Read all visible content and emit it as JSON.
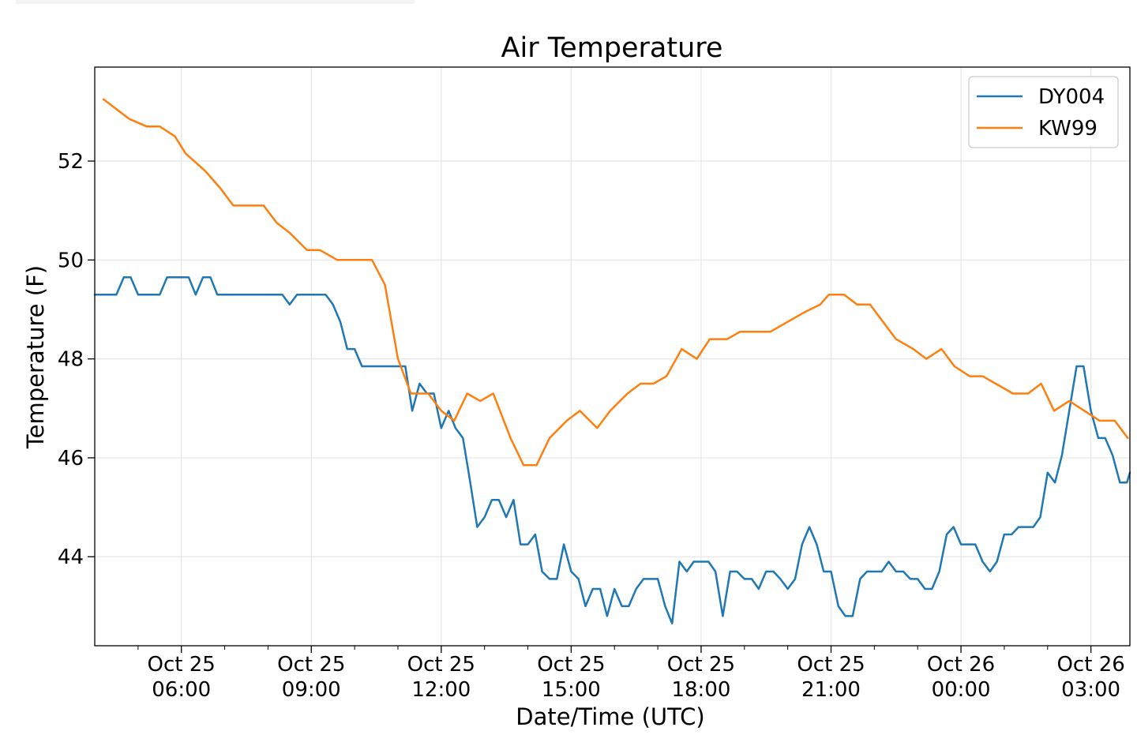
{
  "chart_data": {
    "type": "line",
    "title": "Air Temperature",
    "xlabel": "Date/Time (UTC)",
    "ylabel": "Temperature (F)",
    "x_unit": "hours UTC from 2019-10-25 00:00",
    "xlim": [
      4,
      27.9
    ],
    "ylim": [
      42.2,
      53.9
    ],
    "grid": true,
    "legend_position": "top-right",
    "x_major_ticks": [
      {
        "x": 6,
        "line1": "Oct 25",
        "line2": "06:00"
      },
      {
        "x": 9,
        "line1": "Oct 25",
        "line2": "09:00"
      },
      {
        "x": 12,
        "line1": "Oct 25",
        "line2": "12:00"
      },
      {
        "x": 15,
        "line1": "Oct 25",
        "line2": "15:00"
      },
      {
        "x": 18,
        "line1": "Oct 25",
        "line2": "18:00"
      },
      {
        "x": 21,
        "line1": "Oct 25",
        "line2": "21:00"
      },
      {
        "x": 24,
        "line1": "Oct 26",
        "line2": "00:00"
      },
      {
        "x": 27,
        "line1": "Oct 26",
        "line2": "03:00"
      }
    ],
    "x_minor_ticks": [
      5,
      7,
      8,
      10,
      11,
      13,
      14,
      16,
      17,
      19,
      20,
      22,
      23,
      25,
      26
    ],
    "y_ticks": [
      44,
      46,
      48,
      50,
      52
    ],
    "series": [
      {
        "name": "DY004",
        "color": "#1f77b4",
        "points": [
          [
            4.0,
            49.3
          ],
          [
            4.5,
            49.3
          ],
          [
            4.67,
            49.65
          ],
          [
            4.83,
            49.65
          ],
          [
            5.0,
            49.3
          ],
          [
            5.5,
            49.3
          ],
          [
            5.67,
            49.65
          ],
          [
            6.17,
            49.65
          ],
          [
            6.33,
            49.3
          ],
          [
            6.5,
            49.65
          ],
          [
            6.67,
            49.65
          ],
          [
            6.83,
            49.3
          ],
          [
            8.33,
            49.3
          ],
          [
            8.5,
            49.1
          ],
          [
            8.67,
            49.3
          ],
          [
            9.33,
            49.3
          ],
          [
            9.5,
            49.1
          ],
          [
            9.67,
            48.75
          ],
          [
            9.83,
            48.2
          ],
          [
            10.0,
            48.2
          ],
          [
            10.17,
            47.85
          ],
          [
            11.0,
            47.85
          ],
          [
            11.17,
            47.85
          ],
          [
            11.33,
            46.95
          ],
          [
            11.5,
            47.5
          ],
          [
            11.67,
            47.3
          ],
          [
            11.83,
            47.3
          ],
          [
            12.0,
            46.6
          ],
          [
            12.17,
            46.95
          ],
          [
            12.33,
            46.6
          ],
          [
            12.5,
            46.4
          ],
          [
            12.67,
            45.5
          ],
          [
            12.83,
            44.6
          ],
          [
            13.0,
            44.8
          ],
          [
            13.17,
            45.15
          ],
          [
            13.33,
            45.15
          ],
          [
            13.5,
            44.8
          ],
          [
            13.67,
            45.15
          ],
          [
            13.83,
            44.25
          ],
          [
            14.0,
            44.25
          ],
          [
            14.17,
            44.45
          ],
          [
            14.33,
            43.7
          ],
          [
            14.5,
            43.55
          ],
          [
            14.67,
            43.55
          ],
          [
            14.83,
            44.25
          ],
          [
            15.0,
            43.7
          ],
          [
            15.17,
            43.55
          ],
          [
            15.33,
            43.0
          ],
          [
            15.5,
            43.35
          ],
          [
            15.67,
            43.35
          ],
          [
            15.83,
            42.8
          ],
          [
            16.0,
            43.35
          ],
          [
            16.17,
            43.0
          ],
          [
            16.33,
            43.0
          ],
          [
            16.5,
            43.35
          ],
          [
            16.67,
            43.55
          ],
          [
            17.0,
            43.55
          ],
          [
            17.17,
            43.0
          ],
          [
            17.33,
            42.65
          ],
          [
            17.5,
            43.9
          ],
          [
            17.67,
            43.7
          ],
          [
            17.83,
            43.9
          ],
          [
            18.17,
            43.9
          ],
          [
            18.33,
            43.7
          ],
          [
            18.5,
            42.8
          ],
          [
            18.67,
            43.7
          ],
          [
            18.83,
            43.7
          ],
          [
            19.0,
            43.55
          ],
          [
            19.17,
            43.55
          ],
          [
            19.33,
            43.35
          ],
          [
            19.5,
            43.7
          ],
          [
            19.67,
            43.7
          ],
          [
            19.83,
            43.55
          ],
          [
            20.0,
            43.35
          ],
          [
            20.17,
            43.55
          ],
          [
            20.33,
            44.25
          ],
          [
            20.5,
            44.6
          ],
          [
            20.67,
            44.25
          ],
          [
            20.83,
            43.7
          ],
          [
            21.0,
            43.7
          ],
          [
            21.17,
            43.0
          ],
          [
            21.33,
            42.8
          ],
          [
            21.5,
            42.8
          ],
          [
            21.67,
            43.55
          ],
          [
            21.83,
            43.7
          ],
          [
            22.17,
            43.7
          ],
          [
            22.33,
            43.9
          ],
          [
            22.5,
            43.7
          ],
          [
            22.67,
            43.7
          ],
          [
            22.83,
            43.55
          ],
          [
            23.0,
            43.55
          ],
          [
            23.17,
            43.35
          ],
          [
            23.33,
            43.35
          ],
          [
            23.5,
            43.7
          ],
          [
            23.67,
            44.45
          ],
          [
            23.83,
            44.6
          ],
          [
            24.0,
            44.25
          ],
          [
            24.33,
            44.25
          ],
          [
            24.5,
            43.9
          ],
          [
            24.67,
            43.7
          ],
          [
            24.83,
            43.9
          ],
          [
            25.0,
            44.45
          ],
          [
            25.17,
            44.45
          ],
          [
            25.33,
            44.6
          ],
          [
            25.67,
            44.6
          ],
          [
            25.83,
            44.8
          ],
          [
            26.0,
            45.7
          ],
          [
            26.17,
            45.5
          ],
          [
            26.33,
            46.05
          ],
          [
            26.5,
            46.95
          ],
          [
            26.67,
            47.85
          ],
          [
            26.83,
            47.85
          ],
          [
            27.0,
            46.95
          ],
          [
            27.17,
            46.4
          ],
          [
            27.33,
            46.4
          ],
          [
            27.5,
            46.05
          ],
          [
            27.67,
            45.5
          ],
          [
            27.83,
            45.5
          ],
          [
            28.0,
            45.7
          ]
        ]
      },
      {
        "name": "KW99",
        "color": "#ff7f0e",
        "points": [
          [
            4.2,
            53.25
          ],
          [
            4.5,
            53.05
          ],
          [
            4.8,
            52.85
          ],
          [
            5.2,
            52.7
          ],
          [
            5.5,
            52.7
          ],
          [
            5.85,
            52.5
          ],
          [
            6.1,
            52.15
          ],
          [
            6.55,
            51.8
          ],
          [
            6.9,
            51.45
          ],
          [
            7.2,
            51.1
          ],
          [
            7.6,
            51.1
          ],
          [
            7.9,
            51.1
          ],
          [
            8.2,
            50.75
          ],
          [
            8.5,
            50.55
          ],
          [
            8.9,
            50.2
          ],
          [
            9.2,
            50.2
          ],
          [
            9.6,
            50.0
          ],
          [
            10.2,
            50.0
          ],
          [
            10.4,
            50.0
          ],
          [
            10.7,
            49.5
          ],
          [
            11.0,
            48.0
          ],
          [
            11.3,
            47.3
          ],
          [
            11.7,
            47.3
          ],
          [
            12.0,
            46.95
          ],
          [
            12.3,
            46.75
          ],
          [
            12.6,
            47.3
          ],
          [
            12.9,
            47.15
          ],
          [
            13.2,
            47.3
          ],
          [
            13.6,
            46.4
          ],
          [
            13.9,
            45.85
          ],
          [
            14.2,
            45.85
          ],
          [
            14.5,
            46.4
          ],
          [
            14.9,
            46.75
          ],
          [
            15.2,
            46.95
          ],
          [
            15.6,
            46.6
          ],
          [
            15.9,
            46.95
          ],
          [
            16.3,
            47.3
          ],
          [
            16.6,
            47.5
          ],
          [
            16.9,
            47.5
          ],
          [
            17.2,
            47.65
          ],
          [
            17.55,
            48.2
          ],
          [
            17.9,
            48.0
          ],
          [
            18.2,
            48.4
          ],
          [
            18.6,
            48.4
          ],
          [
            18.9,
            48.55
          ],
          [
            19.2,
            48.55
          ],
          [
            19.6,
            48.55
          ],
          [
            20.0,
            48.75
          ],
          [
            20.4,
            48.95
          ],
          [
            20.75,
            49.1
          ],
          [
            20.95,
            49.3
          ],
          [
            21.3,
            49.3
          ],
          [
            21.6,
            49.1
          ],
          [
            21.9,
            49.1
          ],
          [
            22.2,
            48.75
          ],
          [
            22.5,
            48.4
          ],
          [
            22.9,
            48.2
          ],
          [
            23.2,
            48.0
          ],
          [
            23.55,
            48.2
          ],
          [
            23.85,
            47.85
          ],
          [
            24.2,
            47.65
          ],
          [
            24.5,
            47.65
          ],
          [
            24.8,
            47.5
          ],
          [
            25.2,
            47.3
          ],
          [
            25.55,
            47.3
          ],
          [
            25.85,
            47.5
          ],
          [
            26.15,
            46.95
          ],
          [
            26.5,
            47.15
          ],
          [
            26.85,
            46.95
          ],
          [
            27.2,
            46.75
          ],
          [
            27.55,
            46.75
          ],
          [
            27.85,
            46.4
          ]
        ]
      }
    ]
  }
}
